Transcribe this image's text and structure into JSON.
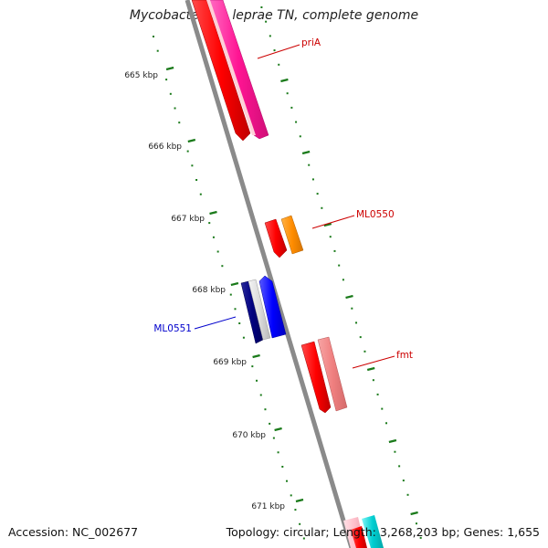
{
  "title": "Mycobacterium leprae TN, complete genome",
  "footer": {
    "accession": "Accession: NC_002677",
    "topology": "Topology: circular; Length: 3,268,203 bp; Genes: 1,655"
  },
  "colors": {
    "backbone": "#8a8a8a",
    "tick": "#1a7a1a",
    "label_forward": "#cc0000",
    "label_reverse": "#0000cc"
  },
  "ticks": [
    "665 kbp",
    "666 kbp",
    "667 kbp",
    "668 kbp",
    "669 kbp",
    "670 kbp",
    "671 kbp"
  ],
  "genes": [
    {
      "label": "priA",
      "strand": "forward",
      "color": "#ff1493"
    },
    {
      "label": "ML0550",
      "strand": "forward",
      "color": "#ff8c00"
    },
    {
      "label": "ML0551",
      "strand": "reverse",
      "color": "#0000ff"
    },
    {
      "label": "fmt",
      "strand": "forward",
      "color": "#f08080"
    }
  ]
}
